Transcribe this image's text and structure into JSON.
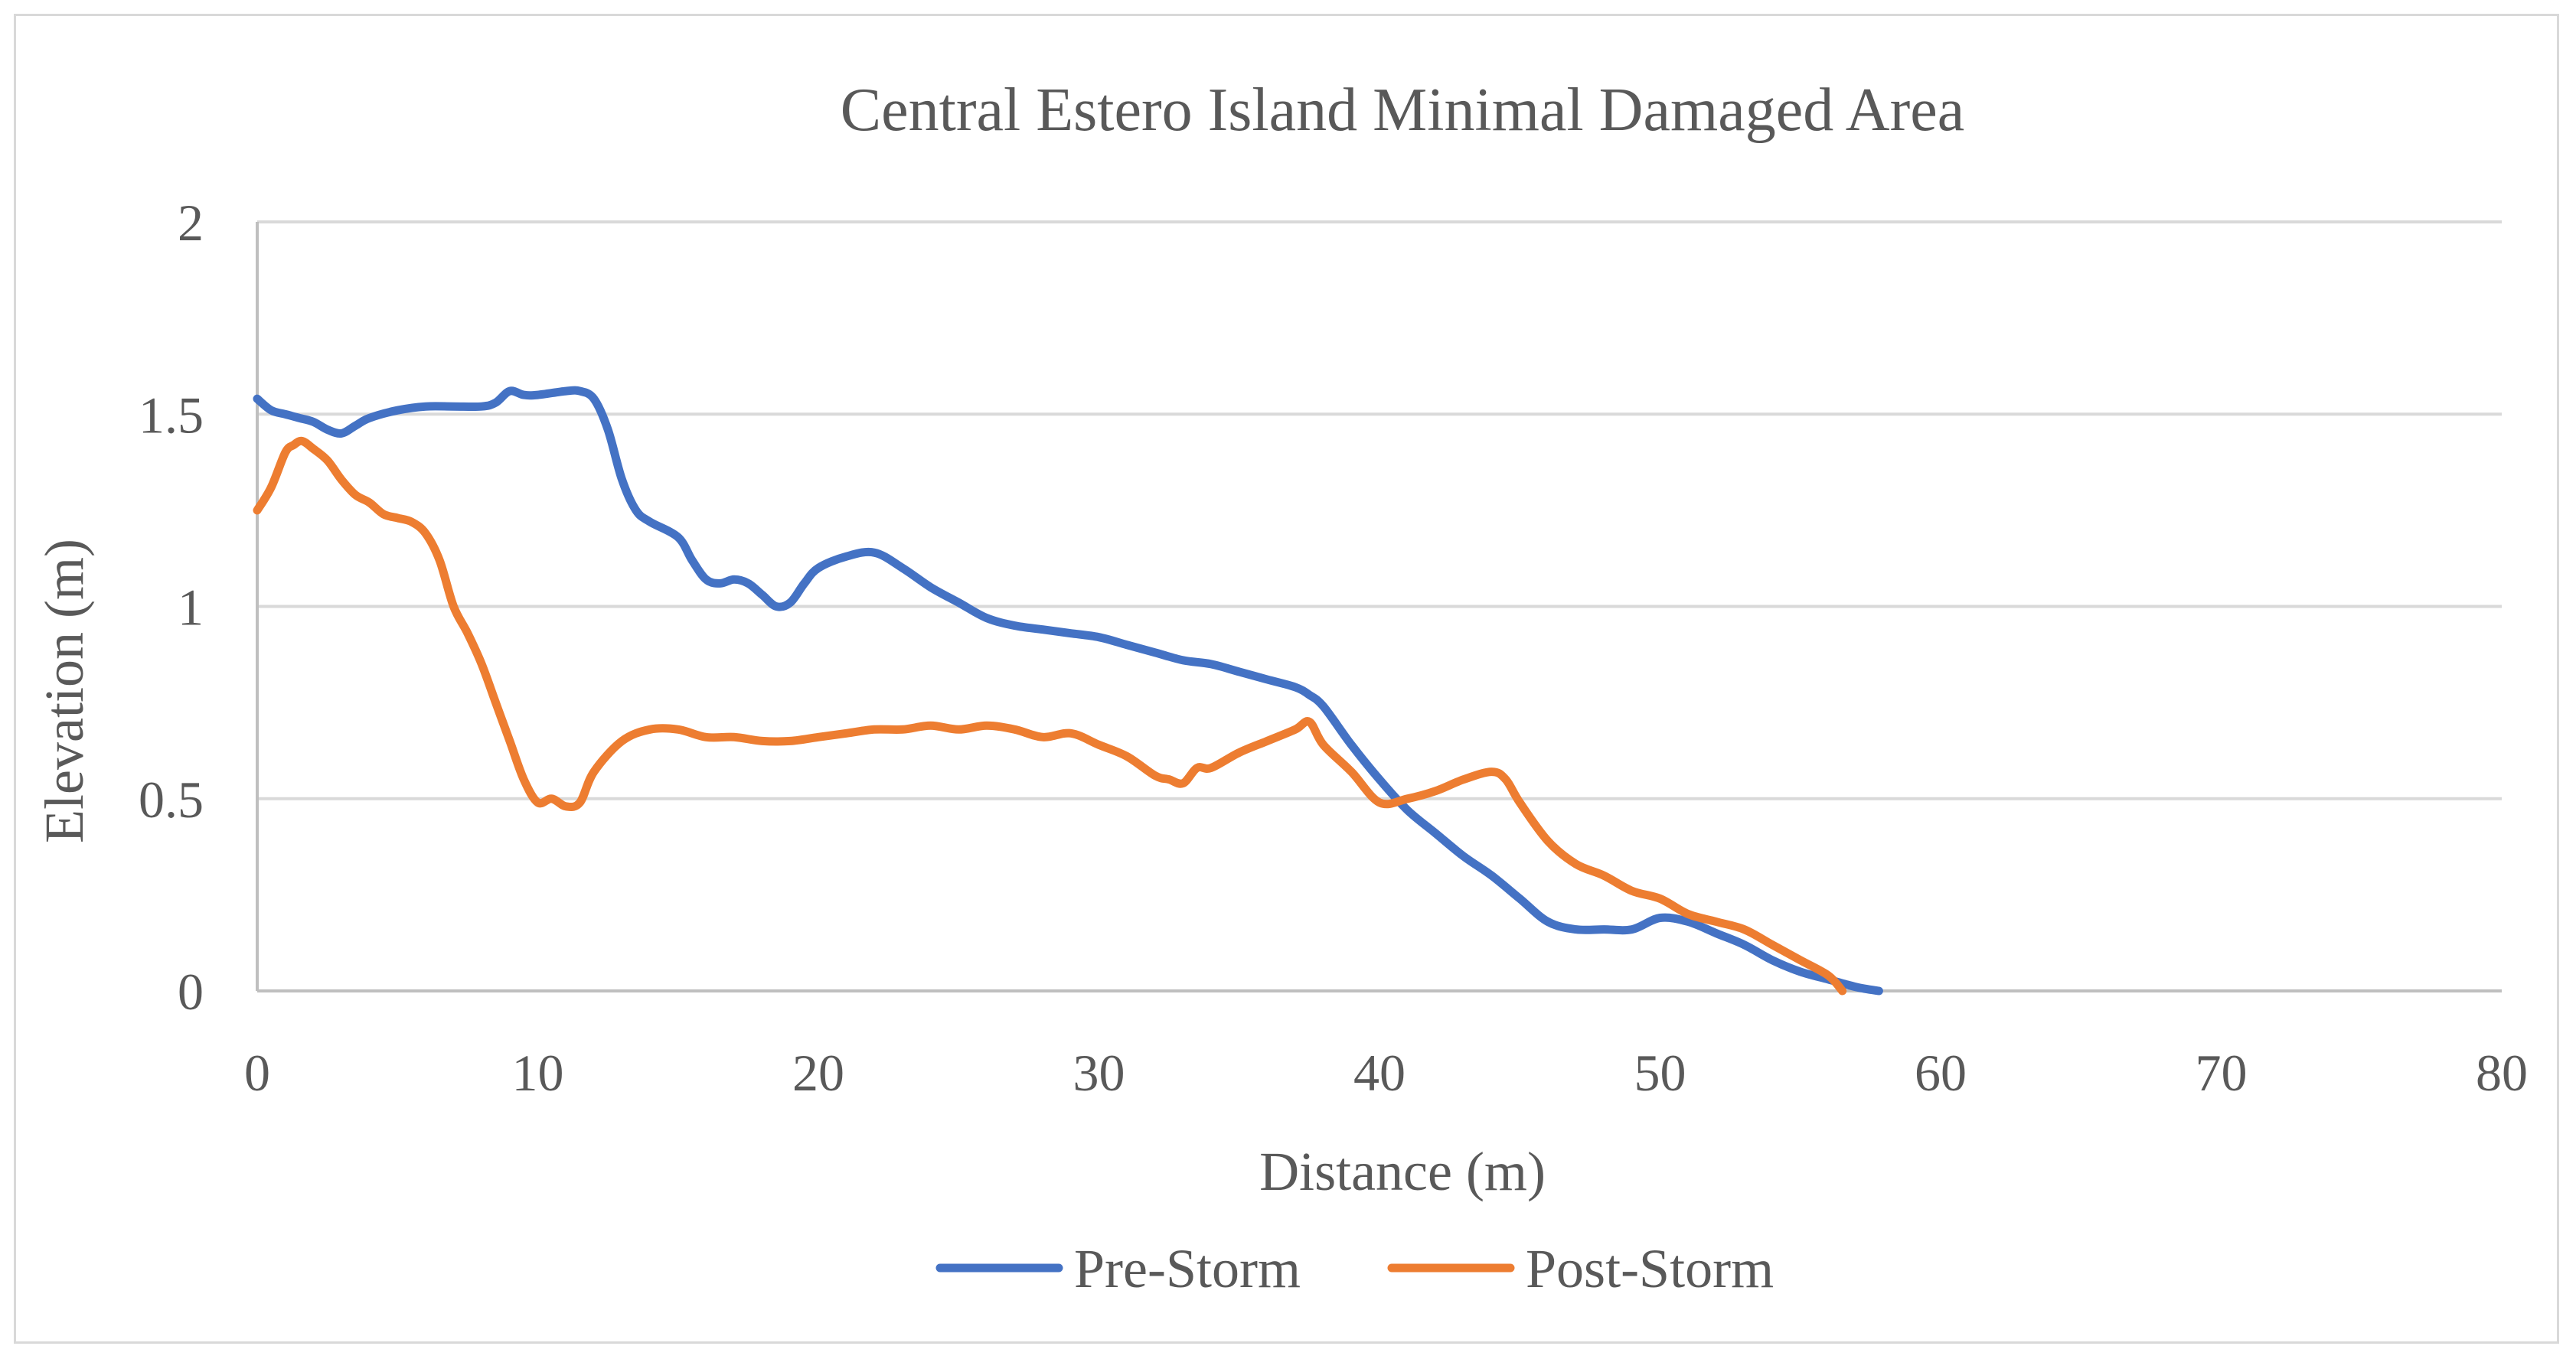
{
  "chart_data": {
    "type": "line",
    "title": "Central Estero Island Minimal Damaged Area",
    "xlabel": "Distance (m)",
    "ylabel": "Elevation (m)",
    "xlim": [
      0,
      80
    ],
    "ylim": [
      0,
      2
    ],
    "x_ticks": [
      "0",
      "10",
      "20",
      "30",
      "40",
      "50",
      "60",
      "70",
      "80"
    ],
    "y_ticks": [
      "0",
      "0.5",
      "1",
      "1.5",
      "2"
    ],
    "x_tick_values": [
      0,
      10,
      20,
      30,
      40,
      50,
      60,
      70,
      80
    ],
    "y_tick_values": [
      0,
      0.5,
      1,
      1.5,
      2
    ],
    "grid": true,
    "legend_position": "bottom",
    "series": [
      {
        "name": "Pre-Storm",
        "color": "#4472c4",
        "x": [
          0,
          0.5,
          1,
          1.5,
          2,
          2.5,
          3,
          3.5,
          4,
          5,
          6,
          7,
          8,
          8.5,
          9,
          9.5,
          10,
          11,
          11.5,
          12,
          12.5,
          13,
          13.5,
          14,
          15,
          15.5,
          16,
          16.5,
          17,
          17.5,
          18,
          18.5,
          19,
          19.5,
          20,
          21,
          22,
          23,
          24,
          25,
          26,
          27,
          28,
          29,
          30,
          31,
          32,
          33,
          34,
          35,
          36,
          37,
          37.5,
          38,
          39,
          40,
          41,
          42,
          43,
          44,
          45,
          46,
          47,
          48,
          49,
          50,
          51,
          52,
          53,
          54,
          55,
          56,
          57,
          57.8
        ],
        "values": [
          1.54,
          1.51,
          1.5,
          1.49,
          1.48,
          1.46,
          1.45,
          1.47,
          1.49,
          1.51,
          1.52,
          1.52,
          1.52,
          1.53,
          1.56,
          1.55,
          1.55,
          1.56,
          1.56,
          1.54,
          1.46,
          1.33,
          1.25,
          1.22,
          1.18,
          1.12,
          1.07,
          1.06,
          1.07,
          1.06,
          1.03,
          1.0,
          1.01,
          1.06,
          1.1,
          1.13,
          1.14,
          1.1,
          1.05,
          1.01,
          0.97,
          0.95,
          0.94,
          0.93,
          0.92,
          0.9,
          0.88,
          0.86,
          0.85,
          0.83,
          0.81,
          0.79,
          0.77,
          0.74,
          0.64,
          0.55,
          0.47,
          0.41,
          0.35,
          0.3,
          0.24,
          0.18,
          0.16,
          0.16,
          0.16,
          0.19,
          0.18,
          0.15,
          0.12,
          0.08,
          0.05,
          0.03,
          0.01,
          0.0
        ]
      },
      {
        "name": "Post-Storm",
        "color": "#ed7d31",
        "x": [
          0,
          0.5,
          1,
          1.3,
          1.6,
          2,
          2.5,
          3,
          3.5,
          4,
          4.5,
          5,
          5.5,
          6,
          6.5,
          7,
          7.5,
          8,
          8.5,
          9,
          9.5,
          10,
          10.5,
          11,
          11.5,
          12,
          13,
          14,
          15,
          16,
          17,
          18,
          19,
          20,
          21,
          22,
          23,
          24,
          25,
          26,
          27,
          28,
          29,
          30,
          31,
          32,
          32.5,
          33,
          33.5,
          34,
          35,
          36,
          37,
          37.5,
          38,
          39,
          40,
          41,
          42,
          43,
          44,
          44.5,
          45,
          46,
          47,
          48,
          49,
          50,
          51,
          52,
          53,
          54,
          55,
          56,
          56.5
        ],
        "values": [
          1.25,
          1.31,
          1.4,
          1.42,
          1.43,
          1.41,
          1.38,
          1.33,
          1.29,
          1.27,
          1.24,
          1.23,
          1.22,
          1.19,
          1.12,
          1.0,
          0.93,
          0.85,
          0.75,
          0.65,
          0.55,
          0.49,
          0.5,
          0.48,
          0.49,
          0.57,
          0.65,
          0.68,
          0.68,
          0.66,
          0.66,
          0.65,
          0.65,
          0.66,
          0.67,
          0.68,
          0.68,
          0.69,
          0.68,
          0.69,
          0.68,
          0.66,
          0.67,
          0.64,
          0.61,
          0.56,
          0.55,
          0.54,
          0.58,
          0.58,
          0.62,
          0.65,
          0.68,
          0.7,
          0.64,
          0.57,
          0.49,
          0.5,
          0.52,
          0.55,
          0.57,
          0.55,
          0.49,
          0.39,
          0.33,
          0.3,
          0.26,
          0.24,
          0.2,
          0.18,
          0.16,
          0.12,
          0.08,
          0.04,
          0.0
        ]
      }
    ]
  }
}
